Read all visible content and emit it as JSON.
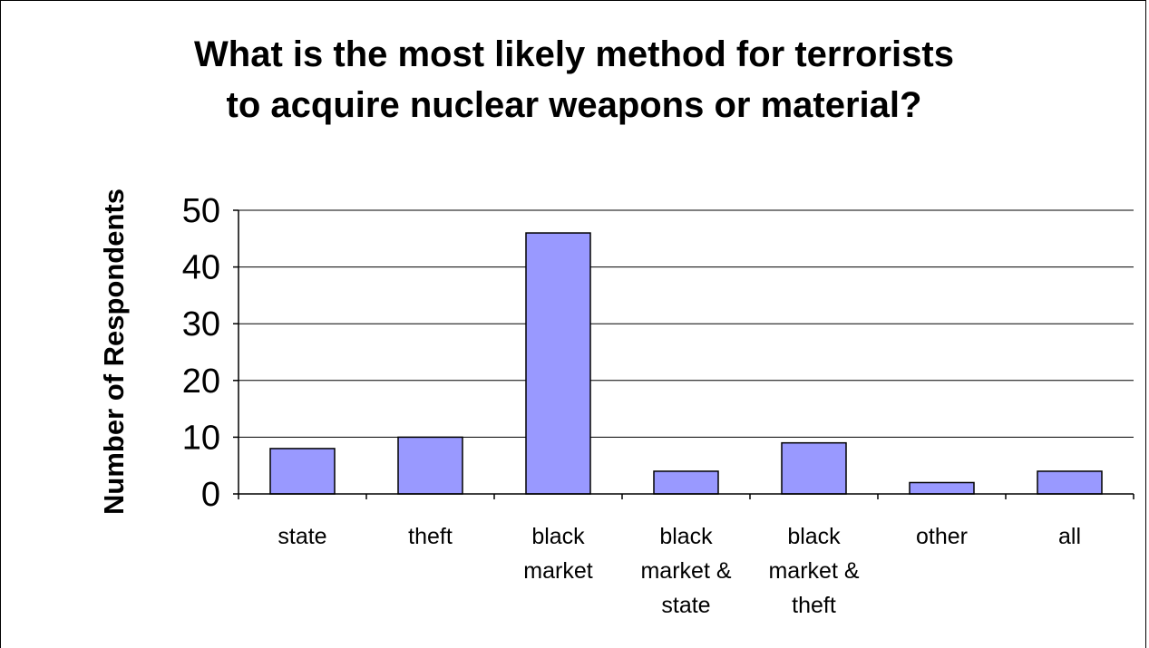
{
  "chart_data": {
    "type": "bar",
    "title": [
      "What is the most likely method for terrorists",
      "to acquire nuclear weapons or material?"
    ],
    "xlabel": "",
    "ylabel": "Number of Respondents",
    "ylim": [
      0,
      50
    ],
    "yticks": [
      0,
      10,
      20,
      30,
      40,
      50
    ],
    "categories": [
      [
        "state"
      ],
      [
        "theft"
      ],
      [
        "black",
        "market"
      ],
      [
        "black",
        "market &",
        "state"
      ],
      [
        "black",
        "market &",
        "theft"
      ],
      [
        "other"
      ],
      [
        "all"
      ]
    ],
    "values": [
      8,
      10,
      46,
      4,
      9,
      2,
      4
    ],
    "bar_color": "#9999ff",
    "grid": true,
    "legend": "none"
  }
}
